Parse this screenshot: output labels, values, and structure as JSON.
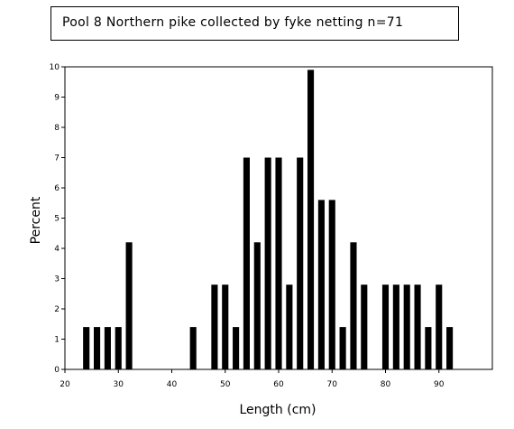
{
  "chart_data": {
    "type": "bar",
    "title": "Pool 8 Northern pike collected by fyke netting n=71",
    "xlabel": "Length (cm)",
    "ylabel": "Percent",
    "xlim": [
      20,
      100
    ],
    "ylim": [
      0,
      10
    ],
    "xticks": [
      20,
      30,
      40,
      50,
      60,
      70,
      80,
      90
    ],
    "yticks": [
      0,
      1,
      2,
      3,
      4,
      5,
      6,
      7,
      8,
      9,
      10
    ],
    "bar_width": 1.2,
    "x": [
      24,
      26,
      28,
      30,
      32,
      44,
      48,
      50,
      52,
      54,
      56,
      58,
      60,
      62,
      64,
      66,
      68,
      70,
      72,
      74,
      76,
      80,
      82,
      84,
      86,
      88,
      90,
      92
    ],
    "values": [
      1.4,
      1.4,
      1.4,
      1.4,
      4.2,
      1.4,
      2.8,
      2.8,
      1.4,
      7.0,
      4.2,
      7.0,
      7.0,
      2.8,
      7.0,
      9.9,
      5.6,
      5.6,
      1.4,
      4.2,
      2.8,
      2.8,
      2.8,
      2.8,
      2.8,
      1.4,
      2.8,
      1.4
    ],
    "bar_color": "#000000",
    "grid": false,
    "legend": "none"
  }
}
